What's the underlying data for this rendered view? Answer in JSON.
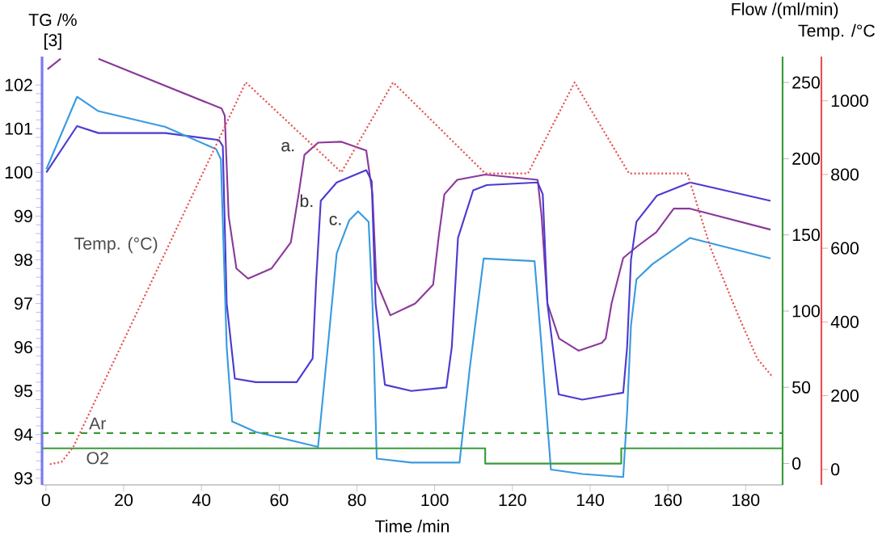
{
  "chart_data": {
    "type": "line",
    "xlabel": "Time /min",
    "ylabel": "TG /%",
    "y2label": "Flow /(ml/min)",
    "y3label": "Temp. /°C",
    "xlim": [
      -1,
      189.5
    ],
    "xticks": [
      0,
      20,
      40,
      60,
      80,
      100,
      120,
      140,
      160,
      180
    ],
    "ylim": [
      92.85,
      102.65
    ],
    "yticks": [
      93,
      94,
      95,
      96,
      97,
      98,
      99,
      100,
      101,
      102
    ],
    "y2lim": [
      -14,
      267
    ],
    "y2ticks": [
      0,
      50,
      100,
      150,
      200,
      250
    ],
    "y3lim": [
      -42,
      1120
    ],
    "y3ticks": [
      0,
      200,
      400,
      600,
      800,
      1000
    ],
    "grid": false,
    "marker": "none",
    "annotations": [
      "[3]",
      {
        "text": "a.",
        "x": 65.9,
        "y": 100.42
      },
      {
        "text": "b.",
        "x": 70.7,
        "y": 99.35
      },
      {
        "text": "c.",
        "x": 78,
        "y": 98.9
      }
    ],
    "series": [
      {
        "color": "#8b3a9b",
        "line_style": "solid",
        "x": [
          0.4,
          3.8,
          8,
          13.5,
          45.2,
          46,
          47,
          49,
          52,
          58,
          63,
          65,
          66.5,
          70,
          76,
          82.4,
          84,
          85,
          88.6,
          95,
          99.6,
          101,
          102.5,
          105.8,
          113,
          126.5,
          127.5,
          129,
          132,
          137,
          143,
          144,
          145.5,
          148.5,
          152,
          157,
          161.5,
          165.7,
          186.4
        ],
        "values": [
          102.36,
          102.6,
          null,
          102.6,
          101.46,
          101.3,
          99,
          97.8,
          97.57,
          97.8,
          98.4,
          99.5,
          100.4,
          100.68,
          100.7,
          100.5,
          99.5,
          97.5,
          96.73,
          97,
          97.43,
          98.5,
          99.5,
          99.83,
          99.95,
          99.83,
          99,
          97,
          96.2,
          95.92,
          96.1,
          96.2,
          97,
          98.04,
          98.3,
          98.63,
          99.17,
          99.17,
          98.69
        ]
      },
      {
        "color": "#4b3bd0",
        "line_style": "solid",
        "x": [
          0.1,
          8,
          13.5,
          30.7,
          44.5,
          45.5,
          46.5,
          48.6,
          54,
          64.5,
          68.6,
          69.5,
          70.7,
          74.8,
          82.4,
          83.8,
          84.8,
          87.2,
          94,
          103,
          104.4,
          106,
          109.9,
          113.4,
          126.5,
          127.8,
          129,
          131.9,
          138,
          148.5,
          149.5,
          150.5,
          151.9,
          157.2,
          165.7,
          186.4
        ],
        "values": [
          100.0,
          101.06,
          100.9,
          100.9,
          100.74,
          100.6,
          97,
          95.28,
          95.2,
          95.2,
          95.74,
          97.5,
          99.35,
          99.77,
          100.05,
          99.8,
          97,
          95.14,
          95.0,
          95.08,
          96,
          98.5,
          99.59,
          99.71,
          99.77,
          99.5,
          97,
          94.92,
          94.8,
          94.96,
          96,
          98,
          98.87,
          99.47,
          99.77,
          99.35
        ]
      },
      {
        "color": "#3a9be0",
        "line_style": "solid",
        "x": [
          0.1,
          8,
          13.5,
          30.7,
          43.8,
          45,
          46.5,
          47.9,
          54,
          70,
          72.5,
          74.8,
          78,
          80.3,
          83,
          84,
          85.1,
          94,
          106.4,
          109,
          112.6,
          125.7,
          127.5,
          129.9,
          138,
          148.5,
          149.5,
          150.5,
          151.9,
          156,
          165.7,
          186.4
        ],
        "values": [
          100.07,
          101.73,
          101.4,
          101.04,
          100.53,
          100.3,
          96,
          94.3,
          94.06,
          93.72,
          96,
          98.15,
          98.9,
          99.11,
          98.87,
          97,
          93.45,
          93.36,
          93.36,
          95.5,
          98.03,
          97.97,
          96,
          93.2,
          93.1,
          93.03,
          94.5,
          96.5,
          97.55,
          97.9,
          98.5,
          98.03
        ]
      },
      {
        "name": "Ar",
        "axis": "y2",
        "color": "#3a9a3a",
        "line_style": "dashed",
        "x": [
          -1,
          189.5
        ],
        "values": [
          20,
          20
        ]
      },
      {
        "name": "O2",
        "axis": "y2",
        "color": "#3a9a3a",
        "line_style": "solid",
        "x": [
          -1,
          113,
          113,
          148,
          148,
          189.5
        ],
        "values": [
          10,
          10,
          0,
          0,
          10,
          10
        ]
      },
      {
        "name": "Temp. (°C)",
        "axis": "y3",
        "color": "#e85050",
        "line_style": "dotted",
        "x": [
          1,
          4,
          7,
          51.4,
          76,
          89.3,
          113,
          124,
          136,
          150,
          165,
          171,
          178,
          183,
          187
        ],
        "values": [
          14,
          20,
          60,
          1050,
          806,
          1050,
          803,
          803,
          1050,
          803,
          803,
          600,
          420,
          300,
          250
        ]
      }
    ]
  }
}
